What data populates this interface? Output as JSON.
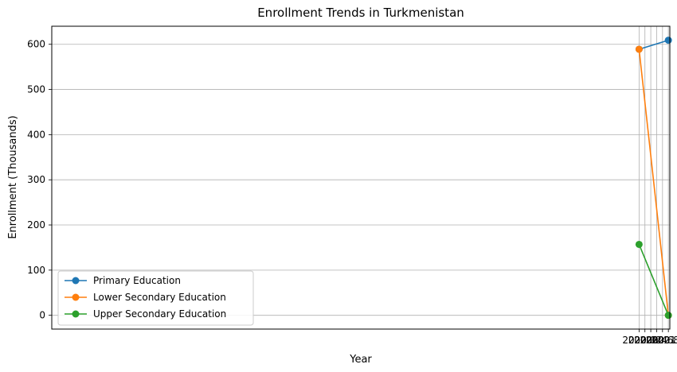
{
  "chart_data": {
    "type": "line",
    "title": "Enrollment Trends in Turkmenistan",
    "xlabel": "Year",
    "ylabel": "Enrollment (Thousands)",
    "x": [
      2020.0,
      2021.0
    ],
    "xlim": [
      1999.95,
      2021.05
    ],
    "ylim": [
      -30.5,
      640
    ],
    "xticks": [
      2020.0,
      2020.2,
      2020.4,
      2020.6,
      2020.8,
      2021.0
    ],
    "xtick_labels": [
      "2020.0",
      "2020.2",
      "2020.4",
      "2020.6",
      "2020.8",
      "2021.0"
    ],
    "yticks": [
      0,
      100,
      200,
      300,
      400,
      500,
      600
    ],
    "ytick_labels": [
      "0",
      "100",
      "200",
      "300",
      "400",
      "500",
      "600"
    ],
    "grid": true,
    "legend_position": "lower-left",
    "series": [
      {
        "name": "Primary Education",
        "values": [
          589,
          609
        ],
        "color": "#1f77b4",
        "marker": "circle"
      },
      {
        "name": "Lower Secondary Education",
        "values": [
          589,
          0
        ],
        "color": "#ff7f0e",
        "marker": "circle"
      },
      {
        "name": "Upper Secondary Education",
        "values": [
          157,
          0
        ],
        "color": "#2ca02c",
        "marker": "circle"
      }
    ]
  }
}
